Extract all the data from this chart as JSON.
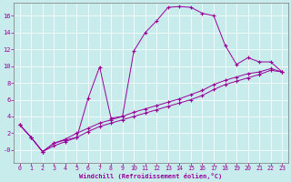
{
  "xlabel": "Windchill (Refroidissement éolien,°C)",
  "background_color": "#c8ecec",
  "line_color": "#990099",
  "grid_color": "#aaaaaa",
  "x_major": [
    0,
    1,
    2,
    3,
    4,
    5,
    6,
    7,
    8,
    9,
    10,
    11,
    12,
    13,
    14,
    15,
    16,
    17,
    18,
    19,
    20,
    21,
    22,
    23
  ],
  "y_ticks": [
    0,
    2,
    4,
    6,
    8,
    10,
    12,
    14,
    16
  ],
  "y_tick_labels": [
    "-0",
    "2",
    "4",
    "6",
    "8",
    "10",
    "12",
    "14",
    "16"
  ],
  "ylim": [
    -1.5,
    17.5
  ],
  "xlim": [
    -0.5,
    23.5
  ],
  "series1_x": [
    0,
    1,
    2,
    3,
    4,
    5,
    6,
    7,
    8,
    9,
    10,
    11,
    12,
    13,
    14,
    15,
    16,
    17,
    18,
    19,
    20,
    21,
    22,
    23
  ],
  "series1_y": [
    3.0,
    1.5,
    -0.2,
    0.8,
    1.2,
    1.5,
    6.2,
    9.9,
    3.8,
    4.0,
    11.8,
    14.0,
    15.4,
    17.0,
    17.1,
    17.0,
    16.3,
    16.0,
    12.5,
    10.2,
    11.0,
    10.5,
    10.5,
    9.3
  ],
  "series2_x": [
    0,
    1,
    2,
    3,
    4,
    5,
    6,
    7,
    8,
    9,
    10,
    11,
    12,
    13,
    14,
    15,
    16,
    17,
    18,
    19,
    20,
    21,
    22,
    23
  ],
  "series2_y": [
    3.0,
    1.5,
    -0.2,
    0.5,
    1.0,
    1.5,
    2.2,
    2.8,
    3.2,
    3.6,
    4.0,
    4.4,
    4.8,
    5.2,
    5.6,
    6.0,
    6.5,
    7.2,
    7.8,
    8.2,
    8.6,
    9.0,
    9.5,
    9.3
  ],
  "series3_x": [
    0,
    1,
    2,
    3,
    4,
    5,
    6,
    7,
    8,
    9,
    10,
    11,
    12,
    13,
    14,
    15,
    16,
    17,
    18,
    19,
    20,
    21,
    22,
    23
  ],
  "series3_y": [
    3.0,
    1.5,
    -0.2,
    0.8,
    1.3,
    2.0,
    2.6,
    3.2,
    3.6,
    4.0,
    4.5,
    4.9,
    5.3,
    5.7,
    6.1,
    6.6,
    7.1,
    7.8,
    8.3,
    8.7,
    9.1,
    9.3,
    9.7,
    9.3
  ]
}
